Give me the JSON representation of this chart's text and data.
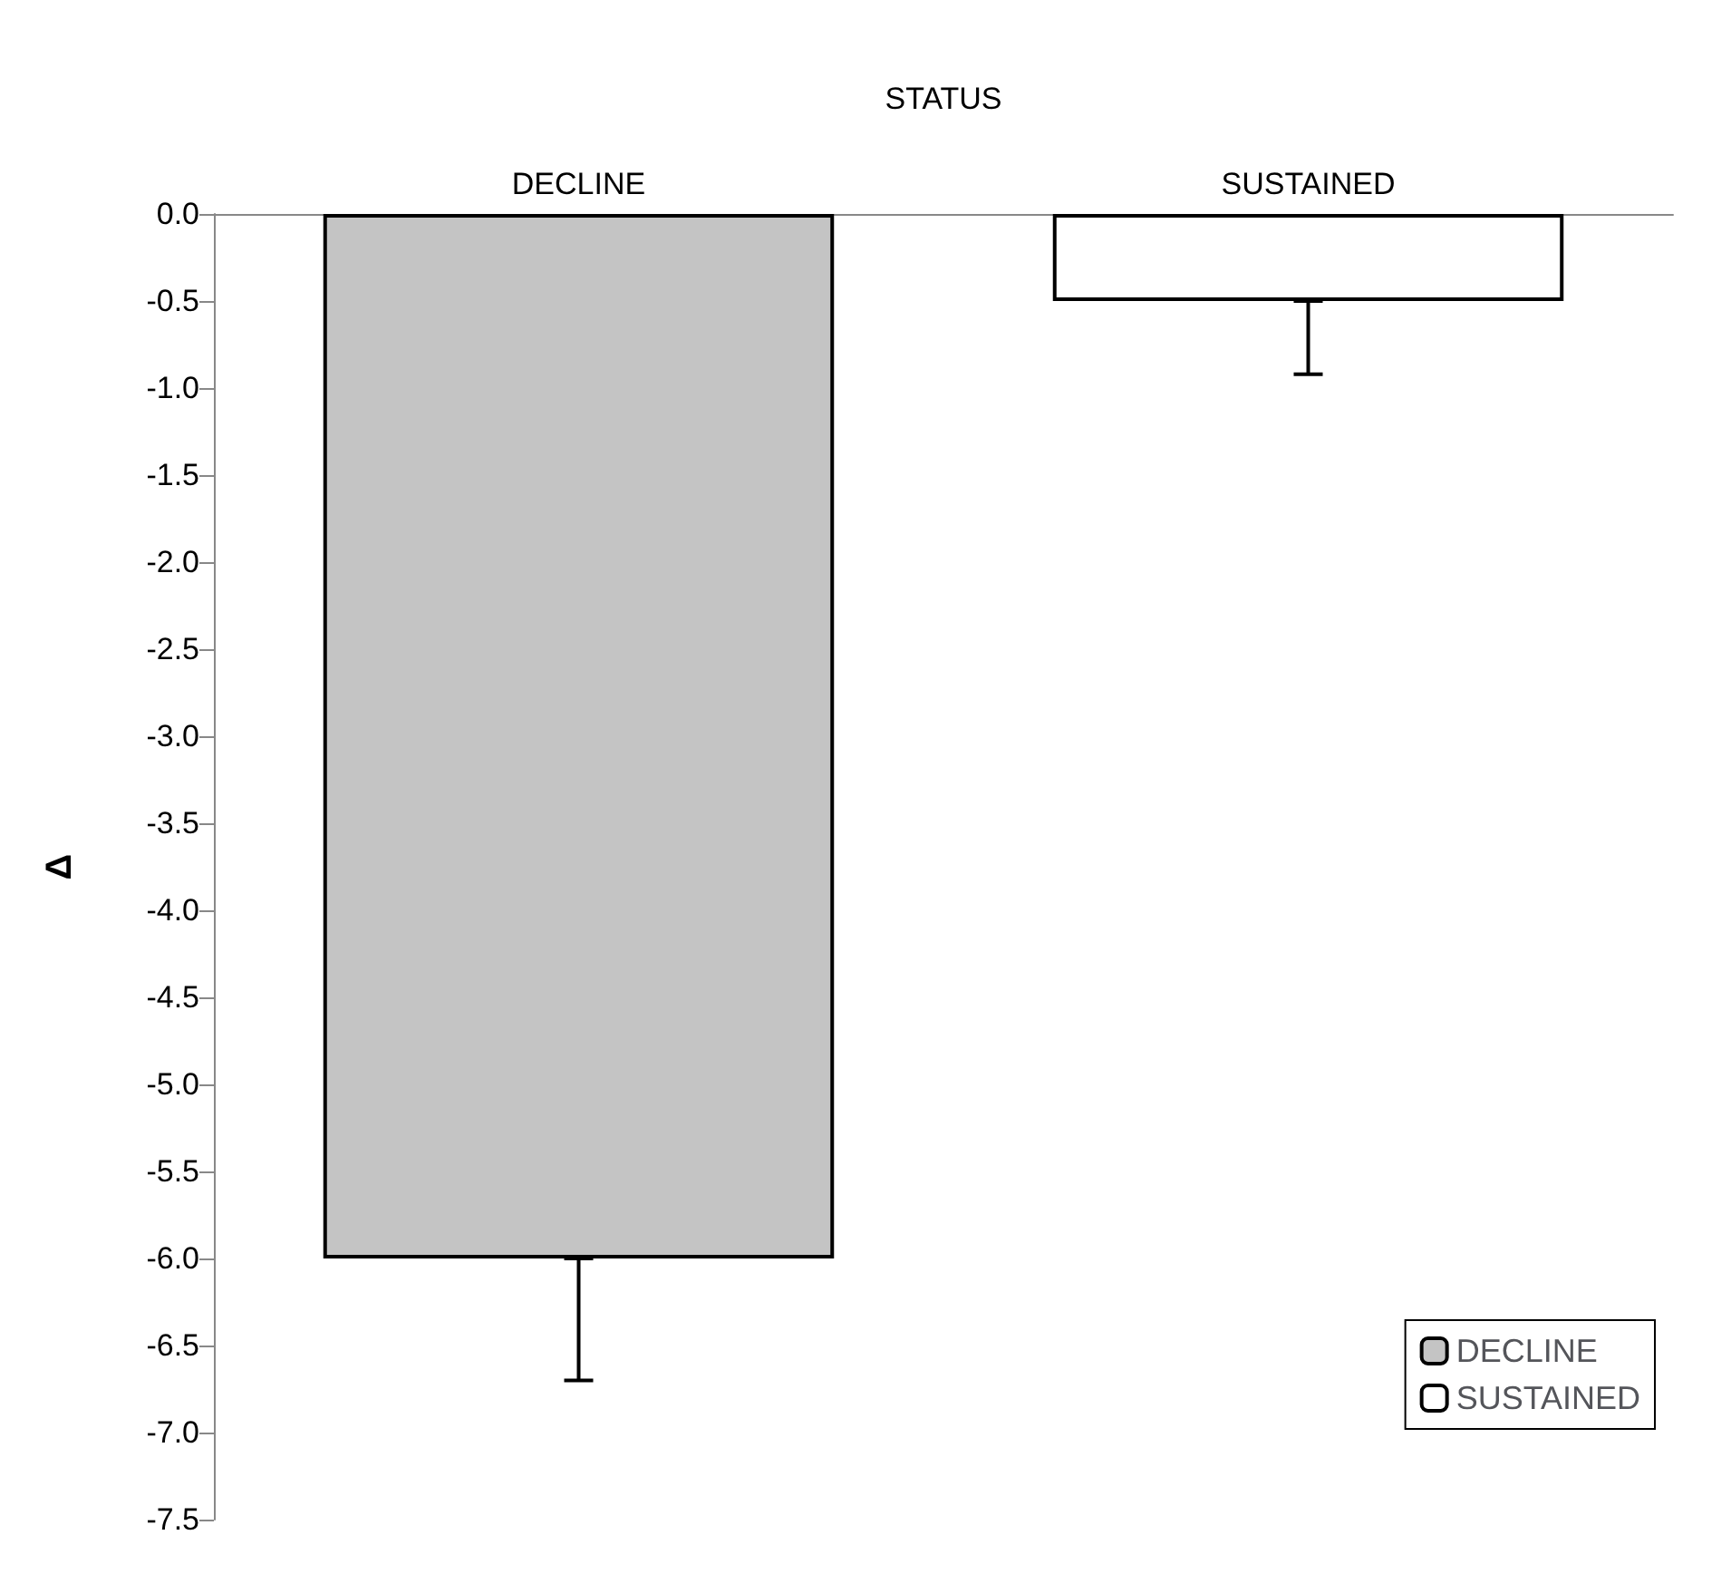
{
  "chart_data": {
    "type": "bar",
    "xlabel": "STATUS",
    "ylabel": "Δ",
    "categories": [
      "DECLINE",
      "SUSTAINED"
    ],
    "series": [
      {
        "name": "DECLINE",
        "color": "#c4c4c4",
        "values": [
          -6.0,
          null
        ],
        "errors": [
          [
            -6.7,
            -6.0
          ],
          null
        ]
      },
      {
        "name": "SUSTAINED",
        "color": "#ffffff",
        "values": [
          null,
          -0.5
        ],
        "errors": [
          null,
          [
            -0.92,
            -0.5
          ]
        ]
      }
    ],
    "ylim": [
      -7.5,
      0
    ],
    "yticks": [
      {
        "value": 0,
        "label": "0.0"
      },
      {
        "value": -0.5,
        "label": "-0.5"
      },
      {
        "value": -1,
        "label": "-1.0"
      },
      {
        "value": -1.5,
        "label": "-1.5"
      },
      {
        "value": -2,
        "label": "-2.0"
      },
      {
        "value": -2.5,
        "label": "-2.5"
      },
      {
        "value": -3,
        "label": "-3.0"
      },
      {
        "value": -3.5,
        "label": "-3.5"
      },
      {
        "value": -4,
        "label": "-4.0"
      },
      {
        "value": -4.5,
        "label": "-4.5"
      },
      {
        "value": -5,
        "label": "-5.0"
      },
      {
        "value": -5.5,
        "label": "-5.5"
      },
      {
        "value": -6,
        "label": "-6.0"
      },
      {
        "value": -6.5,
        "label": "-6.5"
      },
      {
        "value": -7,
        "label": "-7.0"
      },
      {
        "value": -7.5,
        "label": "-7.5"
      }
    ],
    "grid": false,
    "legend": "bottom right"
  }
}
